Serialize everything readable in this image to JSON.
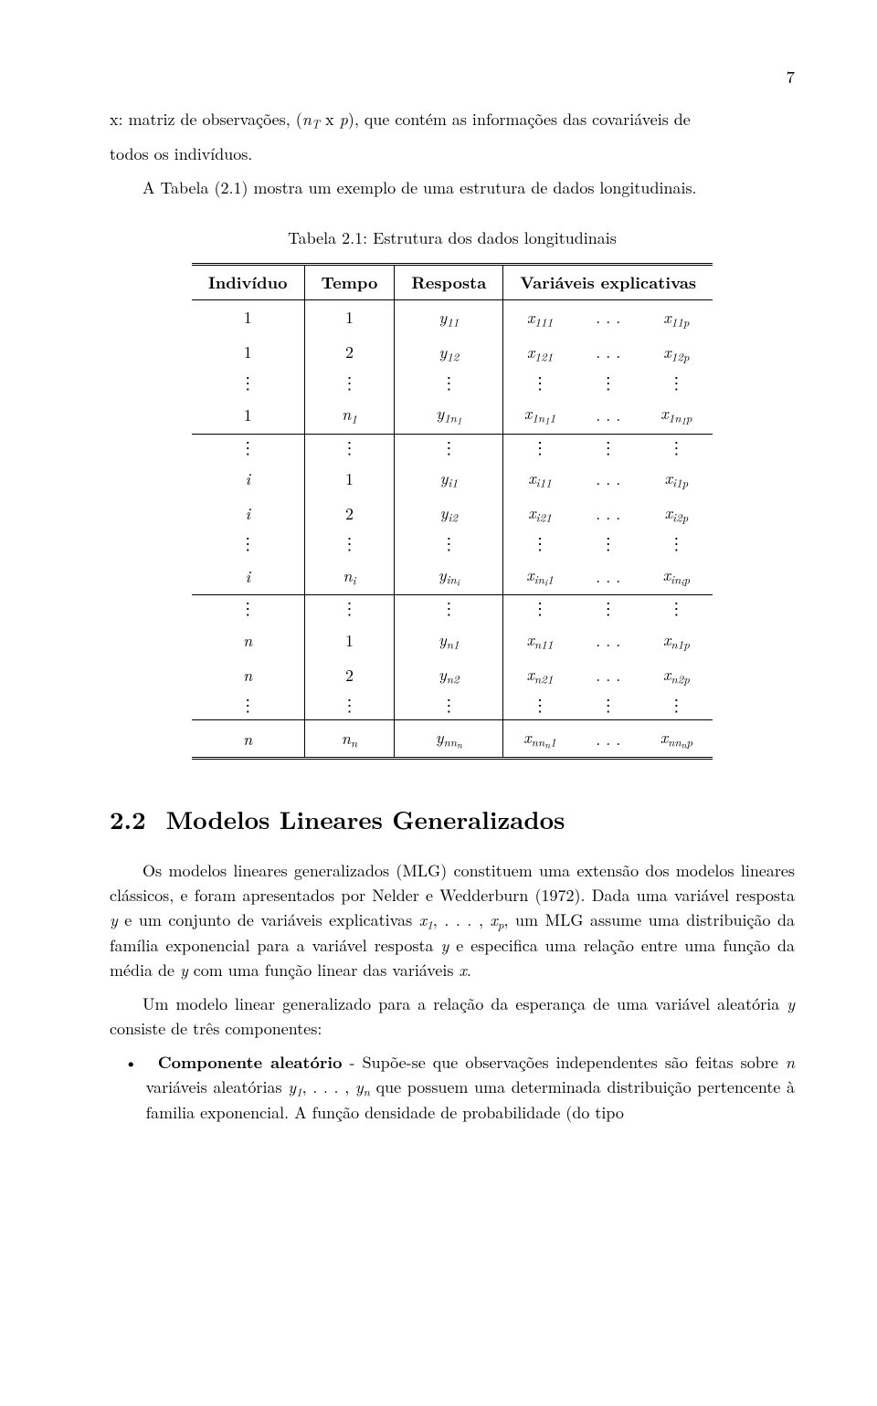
{
  "page_number": "7",
  "intro": {
    "line1_a": "x: matriz de observações, (",
    "line1_nT": "n",
    "line1_Tsub": "T",
    "line1_b": " x ",
    "line1_p": "p",
    "line1_c": "), que contém as informações das covariáveis de",
    "line2": "todos os indivíduos.",
    "line3": "A Tabela (2.1) mostra um exemplo de uma estrutura de dados longitudinais."
  },
  "table": {
    "caption": "Tabela 2.1: Estrutura dos dados longitudinais",
    "head": {
      "c1": "Indivíduo",
      "c2": "Tempo",
      "c3": "Resposta",
      "c4": "Variáveis explicativas"
    },
    "sym": {
      "dots": ". . .",
      "vdots": "⋮",
      "y": "y",
      "x": "x",
      "i": "i",
      "n": "n",
      "p": "p"
    }
  },
  "section": {
    "num": "2.2",
    "title": "Modelos Lineares Generalizados"
  },
  "para1": {
    "t1": "Os modelos lineares generalizados (MLG) constituem uma extensão dos modelos lineares clássicos, e foram apresentados por Nelder e Wedderburn (1972). Dada uma variável resposta ",
    "y": "y",
    "t2": " e um conjunto de variáveis explicativas ",
    "x1": "x",
    "s1": "1",
    "comma": ", . . . , ",
    "xp": "x",
    "sp": "p",
    "t3": ", um MLG assume uma distribuição da família exponencial para a variável resposta ",
    "y2": "y",
    "t4": " e especifica uma relação entre uma função da média de ",
    "y3": "y",
    "t5": " com uma função linear das variáveis ",
    "x": "x",
    "t6": "."
  },
  "para2": {
    "t1": "Um modelo linear generalizado para a relação da esperança de uma variável aleatória ",
    "y": "y",
    "t2": " consiste de três componentes:"
  },
  "bullet1": {
    "label": "Componente aleatório",
    "t1": " - Supõe-se que observações independentes são feitas sobre ",
    "n": "n",
    "t2": " variáveis aleatórias ",
    "y1": "y",
    "s1": "1",
    "comma": ", . . . , ",
    "yn": "y",
    "sn": "n",
    "t3": " que possuem uma determinada distribuição pertencente à familia exponencial. A função densidade de probabilidade (do tipo"
  },
  "styling": {
    "font_family": "Computer Modern / Latin Modern serif",
    "body_fontsize_pt": 11,
    "background": "#ffffff",
    "text_color": "#000000",
    "table_rule_double": "3px double #000",
    "table_rule_single": "1px solid #000"
  }
}
